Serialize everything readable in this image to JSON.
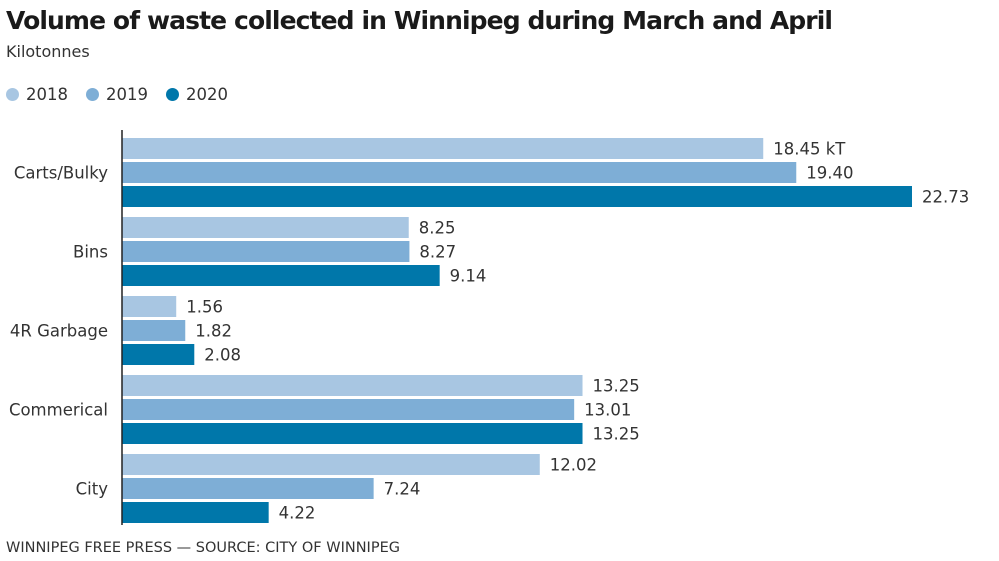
{
  "chart_data": {
    "type": "bar",
    "orientation": "horizontal",
    "title": "Volume of waste collected in Winnipeg during March and April",
    "subtitle": "Kilotonnes",
    "xlabel": "",
    "ylabel": "",
    "xlim": [
      0,
      22.73
    ],
    "grid": false,
    "legend_position": "top-left",
    "categories": [
      "Carts/Bulky",
      "Bins",
      "4R Garbage",
      "Commerical",
      "City"
    ],
    "series": [
      {
        "name": "2018",
        "color": "#a8c6e2",
        "values": [
          18.45,
          8.25,
          1.56,
          13.25,
          12.02
        ],
        "labels": [
          "18.45 kT",
          "8.25",
          "1.56",
          "13.25",
          "12.02"
        ]
      },
      {
        "name": "2019",
        "color": "#7eaed6",
        "values": [
          19.4,
          8.27,
          1.82,
          13.01,
          7.24
        ],
        "labels": [
          "19.40",
          "8.27",
          "1.82",
          "13.01",
          "7.24"
        ]
      },
      {
        "name": "2020",
        "color": "#0077aa",
        "values": [
          22.73,
          9.14,
          2.08,
          13.25,
          4.22
        ],
        "labels": [
          "22.73",
          "9.14",
          "2.08",
          "13.25",
          "4.22"
        ]
      }
    ],
    "source": "WINNIPEG FREE PRESS — SOURCE: CITY OF WINNIPEG"
  }
}
